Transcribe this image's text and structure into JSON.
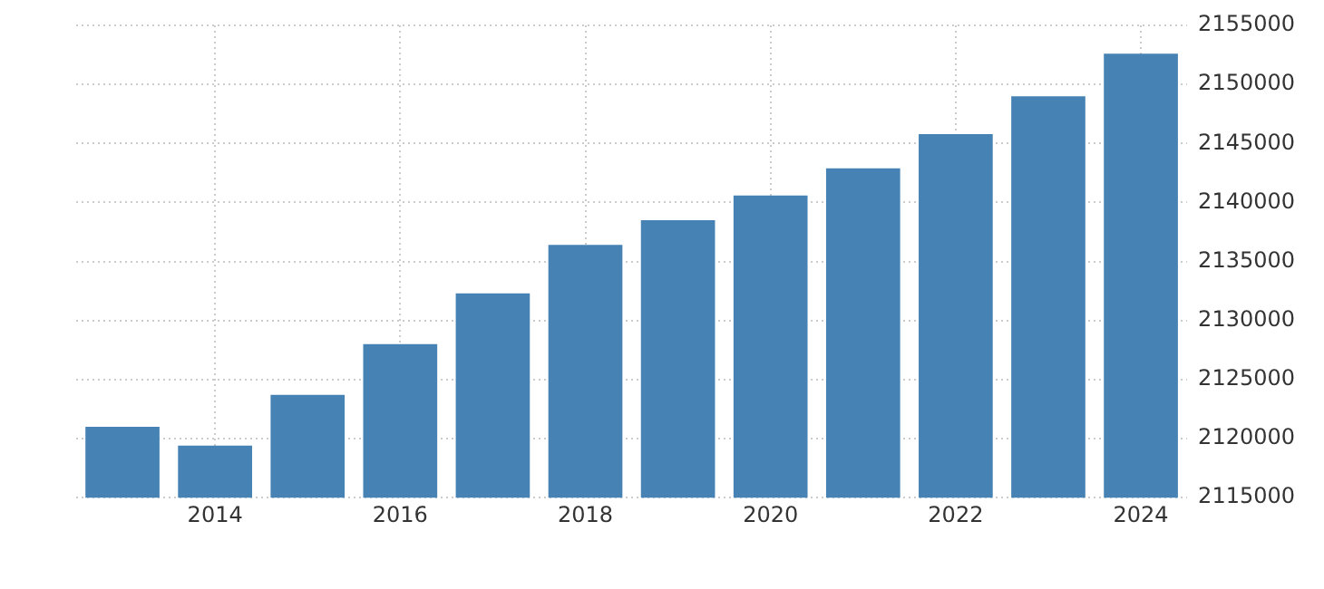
{
  "chart_data": {
    "type": "bar",
    "categories": [
      null,
      "2014",
      null,
      "2016",
      null,
      "2018",
      null,
      "2020",
      null,
      "2022",
      null,
      "2024"
    ],
    "values": [
      2121000,
      2119400,
      2123700,
      2128000,
      2132300,
      2136400,
      2138500,
      2140600,
      2142900,
      2145800,
      2149000,
      2152600
    ],
    "color": "#4682b4",
    "ylim": [
      2115000,
      2155000
    ],
    "yticks": [
      2115000,
      2120000,
      2125000,
      2130000,
      2135000,
      2140000,
      2145000,
      2150000,
      2155000
    ],
    "grid": true,
    "legend": false
  }
}
